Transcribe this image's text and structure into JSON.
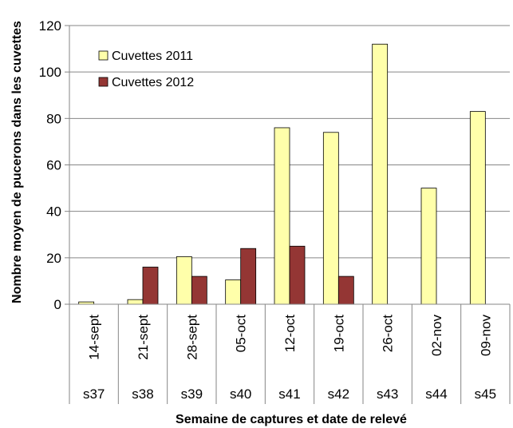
{
  "chart_data": {
    "type": "bar",
    "categories": [
      "14-sept",
      "21-sept",
      "28-sept",
      "05-oct",
      "12-oct",
      "19-oct",
      "26-oct",
      "02-nov",
      "09-nov"
    ],
    "weeks": [
      "s37",
      "s38",
      "s39",
      "s40",
      "s41",
      "s42",
      "s43",
      "s44",
      "s45"
    ],
    "series": [
      {
        "name": "Cuvettes 2011",
        "color": "#FFFFAA",
        "values": [
          1,
          2,
          20.5,
          10.5,
          76,
          74,
          112,
          50,
          83
        ]
      },
      {
        "name": "Cuvettes 2012",
        "color": "#943634",
        "values": [
          0,
          16,
          12,
          24,
          25,
          12,
          0,
          0,
          0
        ]
      }
    ],
    "xlabel": "Semaine de captures et date de relevé",
    "ylabel": "Nombre moyen de pucerons dans les cuvettes",
    "ylim": [
      0,
      120
    ],
    "yticks": [
      0,
      20,
      40,
      60,
      80,
      100,
      120
    ],
    "grid": true,
    "legend_position": "top-left"
  }
}
